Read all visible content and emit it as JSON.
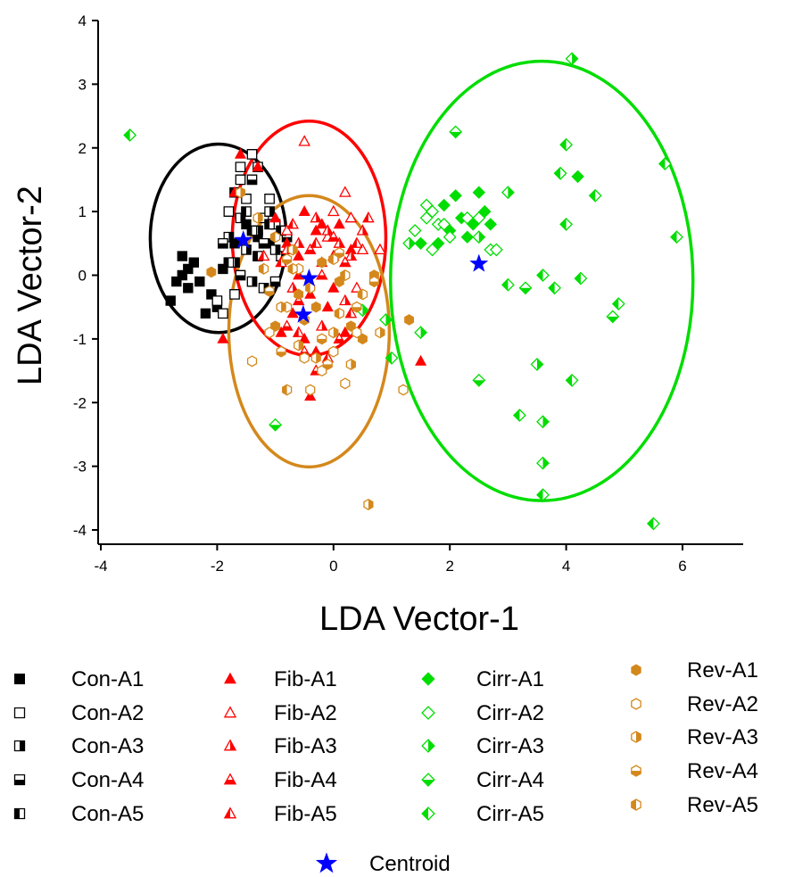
{
  "chart_data": {
    "type": "scatter",
    "title": "",
    "xlabel": "LDA Vector-1",
    "ylabel": "LDA Vector-2",
    "xlim": [
      -4,
      7
    ],
    "ylim": [
      -4.3,
      4
    ],
    "x_ticks": [
      -4,
      -2,
      0,
      2,
      4,
      6
    ],
    "y_ticks": [
      4,
      3,
      2,
      1,
      0,
      -1,
      -2,
      -3,
      -4
    ],
    "legend_position": "bottom",
    "group_colors": {
      "Con": "#000000",
      "Fib": "#ff0000",
      "Cirr": "#00dd00",
      "Rev": "#d4881c",
      "Centroid": "#0000ff"
    },
    "series": [
      {
        "name": "Con-A1",
        "group": "Con",
        "marker": "square",
        "fill": "full",
        "points": [
          [
            -2.8,
            -0.4
          ],
          [
            -2.6,
            0.0
          ],
          [
            -2.5,
            -0.2
          ],
          [
            -2.6,
            0.3
          ],
          [
            -2.4,
            0.2
          ],
          [
            -2.3,
            -0.1
          ],
          [
            -2.0,
            -0.5
          ],
          [
            -2.1,
            -0.3
          ],
          [
            -1.9,
            0.1
          ],
          [
            -2.7,
            -0.1
          ],
          [
            -2.2,
            -0.6
          ],
          [
            -1.7,
            0.5
          ],
          [
            -1.5,
            0.8
          ],
          [
            -1.3,
            0.6
          ],
          [
            -1.1,
            0.5
          ],
          [
            -2.5,
            0.1
          ]
        ]
      },
      {
        "name": "Con-A2",
        "group": "Con",
        "marker": "square",
        "fill": "none",
        "points": [
          [
            -1.9,
            -0.6
          ],
          [
            -1.7,
            -0.3
          ],
          [
            -1.8,
            1.0
          ],
          [
            -1.6,
            1.5
          ],
          [
            -1.5,
            1.2
          ],
          [
            -1.3,
            1.7
          ],
          [
            -1.2,
            0.9
          ],
          [
            -1.0,
            0.8
          ],
          [
            -1.4,
            1.9
          ],
          [
            -1.6,
            1.7
          ],
          [
            -2.0,
            -0.4
          ],
          [
            -1.1,
            1.2
          ]
        ]
      },
      {
        "name": "Con-A3",
        "group": "Con",
        "marker": "square",
        "fill": "right",
        "points": [
          [
            -1.7,
            0.2
          ],
          [
            -1.5,
            0.4
          ],
          [
            -1.3,
            0.7
          ],
          [
            -1.1,
            1.0
          ],
          [
            -1.4,
            -0.1
          ],
          [
            -1.2,
            -0.2
          ],
          [
            -0.9,
            0.3
          ],
          [
            -1.8,
            0.6
          ],
          [
            -1.0,
            0.4
          ],
          [
            -1.6,
            0.9
          ]
        ]
      },
      {
        "name": "Con-A4",
        "group": "Con",
        "marker": "square",
        "fill": "bottom",
        "points": [
          [
            -1.9,
            0.5
          ],
          [
            -1.6,
            0.0
          ],
          [
            -1.4,
            1.5
          ],
          [
            -1.2,
            0.5
          ],
          [
            -1.0,
            -0.1
          ],
          [
            -0.8,
            0.6
          ]
        ]
      },
      {
        "name": "Con-A5",
        "group": "Con",
        "marker": "square",
        "fill": "left",
        "points": [
          [
            -1.8,
            0.2
          ],
          [
            -1.5,
            1.0
          ],
          [
            -1.3,
            0.3
          ],
          [
            -1.1,
            0.8
          ],
          [
            -0.9,
            0.7
          ],
          [
            -1.7,
            1.3
          ],
          [
            -1.4,
            0.7
          ]
        ]
      },
      {
        "name": "Fib-A1",
        "group": "Fib",
        "marker": "triangle",
        "fill": "full",
        "points": [
          [
            -1.7,
            1.3
          ],
          [
            -1.6,
            1.9
          ],
          [
            -1.3,
            1.7
          ],
          [
            -1.0,
            0.9
          ],
          [
            -0.8,
            0.5
          ],
          [
            -0.6,
            0.3
          ],
          [
            -0.5,
            1.0
          ],
          [
            -0.3,
            0.7
          ],
          [
            -0.2,
            0.2
          ],
          [
            0.0,
            -0.2
          ],
          [
            0.1,
            0.8
          ],
          [
            0.3,
            0.4
          ],
          [
            -0.4,
            -0.3
          ],
          [
            -0.7,
            -0.6
          ],
          [
            -0.9,
            -0.9
          ],
          [
            -0.5,
            -1.0
          ],
          [
            -0.3,
            -1.2
          ],
          [
            -1.9,
            -1.0
          ],
          [
            1.5,
            -1.35
          ],
          [
            -0.4,
            -1.9
          ],
          [
            -0.1,
            -0.5
          ],
          [
            0.2,
            -0.9
          ],
          [
            -0.6,
            0.0
          ],
          [
            -0.2,
            0.8
          ]
        ]
      },
      {
        "name": "Fib-A2",
        "group": "Fib",
        "marker": "triangle",
        "fill": "none",
        "points": [
          [
            -0.5,
            2.1
          ],
          [
            0.2,
            1.3
          ],
          [
            0.3,
            0.9
          ],
          [
            0.5,
            0.4
          ],
          [
            0.8,
            0.4
          ],
          [
            -0.1,
            0.6
          ],
          [
            0.0,
            1.0
          ],
          [
            -0.8,
            0.7
          ],
          [
            0.4,
            -0.2
          ]
        ]
      },
      {
        "name": "Fib-A3",
        "group": "Fib",
        "marker": "triangle",
        "fill": "right",
        "points": [
          [
            -0.3,
            0.9
          ],
          [
            -0.1,
            0.7
          ],
          [
            0.1,
            0.5
          ],
          [
            0.3,
            0.3
          ],
          [
            0.5,
            0.7
          ],
          [
            -0.6,
            0.5
          ],
          [
            -0.7,
            -0.2
          ],
          [
            -0.8,
            0.4
          ],
          [
            0.2,
            -0.4
          ],
          [
            -0.2,
            -0.8
          ]
        ]
      },
      {
        "name": "Fib-A4",
        "group": "Fib",
        "marker": "triangle",
        "fill": "bottom",
        "points": [
          [
            -0.4,
            0.4
          ],
          [
            -0.2,
            0.0
          ],
          [
            0.0,
            0.6
          ],
          [
            0.2,
            0.2
          ],
          [
            -0.6,
            -0.4
          ],
          [
            -0.8,
            -0.8
          ],
          [
            -0.5,
            -1.2
          ],
          [
            -0.3,
            -1.5
          ],
          [
            0.1,
            -1.0
          ]
        ]
      },
      {
        "name": "Fib-A5",
        "group": "Fib",
        "marker": "triangle",
        "fill": "left",
        "points": [
          [
            -0.9,
            0.2
          ],
          [
            -0.7,
            0.8
          ],
          [
            -0.3,
            0.5
          ],
          [
            0.0,
            0.3
          ],
          [
            0.3,
            -0.6
          ],
          [
            -0.1,
            -1.3
          ],
          [
            -0.6,
            -0.9
          ],
          [
            0.4,
            0.5
          ],
          [
            0.6,
            0.9
          ],
          [
            -1.2,
            0.3
          ]
        ]
      },
      {
        "name": "Cirr-A1",
        "group": "Cirr",
        "marker": "diamond",
        "fill": "full",
        "points": [
          [
            1.8,
            0.5
          ],
          [
            2.0,
            0.7
          ],
          [
            2.1,
            1.25
          ],
          [
            2.2,
            0.9
          ],
          [
            2.4,
            0.8
          ],
          [
            2.5,
            1.3
          ],
          [
            2.6,
            1.0
          ],
          [
            2.7,
            0.8
          ],
          [
            2.3,
            0.6
          ],
          [
            1.9,
            1.1
          ],
          [
            1.5,
            0.5
          ],
          [
            4.2,
            1.55
          ]
        ]
      },
      {
        "name": "Cirr-A2",
        "group": "Cirr",
        "marker": "diamond",
        "fill": "none",
        "points": [
          [
            1.4,
            0.7
          ],
          [
            1.6,
            0.9
          ],
          [
            1.7,
            1.0
          ],
          [
            1.8,
            0.8
          ],
          [
            2.0,
            0.6
          ],
          [
            2.3,
            0.9
          ],
          [
            2.5,
            0.9
          ],
          [
            2.7,
            0.4
          ],
          [
            2.8,
            0.4
          ],
          [
            1.7,
            0.4
          ],
          [
            1.9,
            0.8
          ],
          [
            1.6,
            1.1
          ]
        ]
      },
      {
        "name": "Cirr-A3",
        "group": "Cirr",
        "marker": "diamond",
        "fill": "right",
        "points": [
          [
            1.3,
            0.5
          ],
          [
            1.5,
            -0.9
          ],
          [
            3.0,
            1.3
          ],
          [
            3.5,
            -1.4
          ],
          [
            3.6,
            -2.3
          ],
          [
            3.6,
            -2.95
          ],
          [
            4.1,
            3.4
          ],
          [
            0.9,
            -0.7
          ],
          [
            0.5,
            -0.55
          ],
          [
            2.5,
            0.6
          ]
        ]
      },
      {
        "name": "Cirr-A4",
        "group": "Cirr",
        "marker": "diamond",
        "fill": "bottom",
        "points": [
          [
            -1.0,
            -2.35
          ],
          [
            2.1,
            2.25
          ],
          [
            3.3,
            -0.2
          ],
          [
            4.8,
            -0.65
          ],
          [
            2.5,
            -1.65
          ],
          [
            3.9,
            1.6
          ]
        ]
      },
      {
        "name": "Cirr-A5",
        "group": "Cirr",
        "marker": "diamond",
        "fill": "left",
        "points": [
          [
            -3.5,
            2.2
          ],
          [
            3.0,
            -0.15
          ],
          [
            3.2,
            -2.2
          ],
          [
            3.6,
            -3.45
          ],
          [
            3.6,
            0.0
          ],
          [
            3.8,
            -0.2
          ],
          [
            3.9,
            1.6
          ],
          [
            4.0,
            2.05
          ],
          [
            4.0,
            0.8
          ],
          [
            4.1,
            -1.65
          ],
          [
            4.25,
            -0.05
          ],
          [
            4.5,
            1.25
          ],
          [
            4.9,
            -0.45
          ],
          [
            5.5,
            -3.9
          ],
          [
            5.7,
            1.75
          ],
          [
            5.9,
            0.6
          ],
          [
            1.0,
            -1.3
          ]
        ]
      },
      {
        "name": "Rev-A1",
        "group": "Rev",
        "marker": "hexagon",
        "fill": "full",
        "points": [
          [
            -2.1,
            0.05
          ],
          [
            -1.0,
            -0.8
          ],
          [
            -0.6,
            -0.3
          ],
          [
            -0.3,
            -0.5
          ],
          [
            0.1,
            -0.1
          ],
          [
            0.3,
            -0.8
          ],
          [
            0.5,
            -1.0
          ],
          [
            -0.2,
            0.2
          ],
          [
            1.3,
            -0.7
          ],
          [
            0.7,
            0.0
          ]
        ]
      },
      {
        "name": "Rev-A2",
        "group": "Rev",
        "marker": "hexagon",
        "fill": "none",
        "points": [
          [
            -1.4,
            -1.35
          ],
          [
            -1.1,
            -0.9
          ],
          [
            -0.8,
            -0.5
          ],
          [
            -0.5,
            -1.3
          ],
          [
            -0.4,
            -1.8
          ],
          [
            -0.2,
            -1.5
          ],
          [
            0.0,
            -1.2
          ],
          [
            0.2,
            -1.7
          ],
          [
            0.4,
            -0.9
          ],
          [
            1.2,
            -1.8
          ],
          [
            -0.6,
            0.1
          ]
        ]
      },
      {
        "name": "Rev-A3",
        "group": "Rev",
        "marker": "hexagon",
        "fill": "right",
        "points": [
          [
            -1.6,
            1.3
          ],
          [
            -1.3,
            0.9
          ],
          [
            -0.9,
            -0.5
          ],
          [
            -0.6,
            -1.1
          ],
          [
            -0.3,
            -1.3
          ],
          [
            0.0,
            -0.9
          ],
          [
            0.3,
            -1.4
          ],
          [
            0.6,
            -3.6
          ],
          [
            0.8,
            -0.9
          ],
          [
            -0.7,
            0.4
          ]
        ]
      },
      {
        "name": "Rev-A4",
        "group": "Rev",
        "marker": "hexagon",
        "fill": "bottom",
        "points": [
          [
            -1.1,
            -0.25
          ],
          [
            -0.8,
            0.25
          ],
          [
            -0.5,
            -0.7
          ],
          [
            -0.2,
            -1.0
          ],
          [
            0.1,
            0.35
          ],
          [
            0.4,
            -0.5
          ],
          [
            -0.9,
            -1.2
          ],
          [
            -0.1,
            -1.4
          ],
          [
            0.7,
            -0.1
          ]
        ]
      },
      {
        "name": "Rev-A5",
        "group": "Rev",
        "marker": "hexagon",
        "fill": "left",
        "points": [
          [
            -1.2,
            0.1
          ],
          [
            -1.0,
            0.6
          ],
          [
            -0.7,
            0.1
          ],
          [
            -0.4,
            -0.2
          ],
          [
            0.1,
            -0.6
          ],
          [
            0.2,
            0.0
          ],
          [
            0.5,
            -0.3
          ],
          [
            -0.8,
            -1.8
          ],
          [
            0.0,
            0.25
          ]
        ]
      },
      {
        "name": "Centroid",
        "group": "Centroid",
        "marker": "star",
        "fill": "full",
        "points": [
          [
            -1.55,
            0.55
          ],
          [
            -0.42,
            -0.05
          ],
          [
            -0.52,
            -0.62
          ],
          [
            2.5,
            0.18
          ]
        ]
      }
    ],
    "ellipses": [
      {
        "group": "Con",
        "color": "#000000",
        "center": [
          -1.98,
          0.58
        ],
        "radii": [
          1.17,
          1.48
        ]
      },
      {
        "group": "Fib",
        "color": "#ff0000",
        "center": [
          -0.42,
          0.58
        ],
        "radii": [
          1.32,
          1.84
        ]
      },
      {
        "group": "Rev",
        "color": "#d4881c",
        "center": [
          -0.42,
          -0.88
        ],
        "radii": [
          1.38,
          2.13
        ]
      },
      {
        "group": "Cirr",
        "color": "#00dd00",
        "center": [
          3.58,
          -0.09
        ],
        "radii": [
          2.6,
          3.45
        ]
      }
    ],
    "legend": [
      {
        "label": "Con-A1",
        "series": "Con-A1"
      },
      {
        "label": "Con-A2",
        "series": "Con-A2"
      },
      {
        "label": "Con-A3",
        "series": "Con-A3"
      },
      {
        "label": "Con-A4",
        "series": "Con-A4"
      },
      {
        "label": "Con-A5",
        "series": "Con-A5"
      },
      {
        "label": "Fib-A1",
        "series": "Fib-A1"
      },
      {
        "label": "Fib-A2",
        "series": "Fib-A2"
      },
      {
        "label": "Fib-A3",
        "series": "Fib-A3"
      },
      {
        "label": "Fib-A4",
        "series": "Fib-A4"
      },
      {
        "label": "Fib-A5",
        "series": "Fib-A5"
      },
      {
        "label": "Cirr-A1",
        "series": "Cirr-A1"
      },
      {
        "label": "Cirr-A2",
        "series": "Cirr-A2"
      },
      {
        "label": "Cirr-A3",
        "series": "Cirr-A3"
      },
      {
        "label": "Cirr-A4",
        "series": "Cirr-A4"
      },
      {
        "label": "Cirr-A5",
        "series": "Cirr-A5"
      },
      {
        "label": "Rev-A1",
        "series": "Rev-A1"
      },
      {
        "label": "Rev-A2",
        "series": "Rev-A2"
      },
      {
        "label": "Rev-A3",
        "series": "Rev-A3"
      },
      {
        "label": "Rev-A4",
        "series": "Rev-A4"
      },
      {
        "label": "Rev-A5",
        "series": "Rev-A5"
      },
      {
        "label": "Centroid",
        "series": "Centroid"
      }
    ]
  }
}
